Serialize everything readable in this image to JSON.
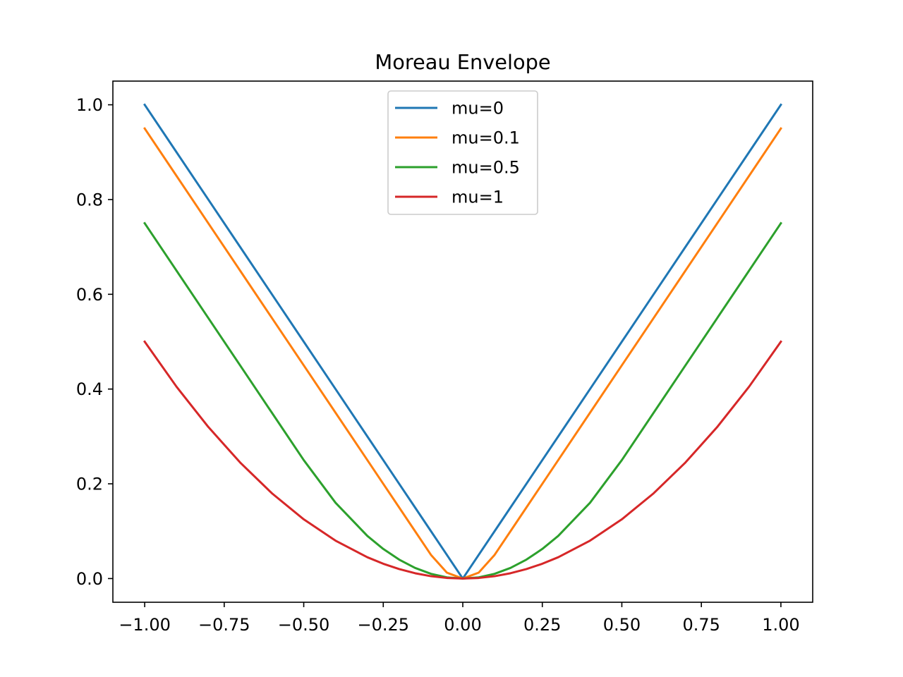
{
  "chart_data": {
    "type": "line",
    "title": "Moreau Envelope",
    "xlabel": "",
    "ylabel": "",
    "xlim": [
      -1.1,
      1.1
    ],
    "ylim": [
      -0.05,
      1.05
    ],
    "x_ticks": [
      -1.0,
      -0.75,
      -0.5,
      -0.25,
      0.0,
      0.25,
      0.5,
      0.75,
      1.0
    ],
    "x_tick_labels": [
      "−1.00",
      "−0.75",
      "−0.50",
      "−0.25",
      "0.00",
      "0.25",
      "0.50",
      "0.75",
      "1.00"
    ],
    "y_ticks": [
      0.0,
      0.2,
      0.4,
      0.6,
      0.8,
      1.0
    ],
    "y_tick_labels": [
      "0.0",
      "0.2",
      "0.4",
      "0.6",
      "0.8",
      "1.0"
    ],
    "grid": false,
    "legend_position": "top-center",
    "x": [
      -1.0,
      -0.9,
      -0.8,
      -0.7,
      -0.6,
      -0.5,
      -0.4,
      -0.3,
      -0.25,
      -0.2,
      -0.15,
      -0.1,
      -0.05,
      0.0,
      0.05,
      0.1,
      0.15,
      0.2,
      0.25,
      0.3,
      0.4,
      0.5,
      0.6,
      0.7,
      0.8,
      0.9,
      1.0
    ],
    "series": [
      {
        "name": "mu=0",
        "color": "#1f77b4",
        "values": [
          1.0,
          0.9,
          0.8,
          0.7,
          0.6,
          0.5,
          0.4,
          0.3,
          0.25,
          0.2,
          0.15,
          0.1,
          0.05,
          0.0,
          0.05,
          0.1,
          0.15,
          0.2,
          0.25,
          0.3,
          0.4,
          0.5,
          0.6,
          0.7,
          0.8,
          0.9,
          1.0
        ]
      },
      {
        "name": "mu=0.1",
        "color": "#ff7f0e",
        "values": [
          0.95,
          0.85,
          0.75,
          0.65,
          0.55,
          0.45,
          0.35,
          0.25,
          0.2,
          0.15,
          0.1,
          0.05,
          0.0125,
          0.0,
          0.0125,
          0.05,
          0.1,
          0.15,
          0.2,
          0.25,
          0.35,
          0.45,
          0.55,
          0.65,
          0.75,
          0.85,
          0.95
        ]
      },
      {
        "name": "mu=0.5",
        "color": "#2ca02c",
        "values": [
          0.75,
          0.65,
          0.55,
          0.45,
          0.35,
          0.25,
          0.16,
          0.09,
          0.0625,
          0.04,
          0.0225,
          0.01,
          0.0025,
          0.0,
          0.0025,
          0.01,
          0.0225,
          0.04,
          0.0625,
          0.09,
          0.16,
          0.25,
          0.35,
          0.45,
          0.55,
          0.65,
          0.75
        ]
      },
      {
        "name": "mu=1",
        "color": "#d62728",
        "values": [
          0.5,
          0.405,
          0.32,
          0.245,
          0.18,
          0.125,
          0.08,
          0.045,
          0.03125,
          0.02,
          0.01125,
          0.005,
          0.00125,
          0.0,
          0.00125,
          0.005,
          0.01125,
          0.02,
          0.03125,
          0.045,
          0.08,
          0.125,
          0.18,
          0.245,
          0.32,
          0.405,
          0.5
        ]
      }
    ]
  }
}
